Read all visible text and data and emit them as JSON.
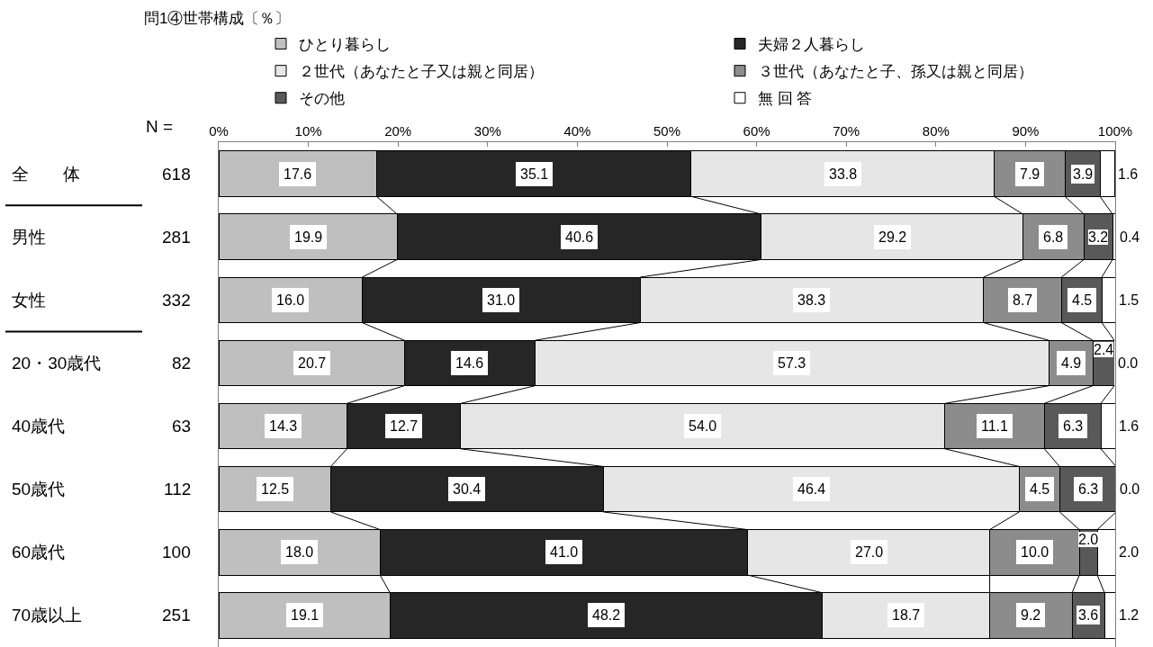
{
  "chart_data": {
    "type": "bar",
    "orientation": "horizontal",
    "stacked": true,
    "title": "問1④世帯構成〔％〕",
    "categories": [
      "全　　体",
      "男性",
      "女性",
      "20・30歳代",
      "40歳代",
      "50歳代",
      "60歳代",
      "70歳以上"
    ],
    "y2_categories": [
      "618",
      "281",
      "332",
      "82",
      "63",
      "112",
      "100",
      "251"
    ],
    "annotations": [
      "N ="
    ],
    "xlim": [
      0,
      100
    ],
    "xticks": [
      {
        "value": 0,
        "label": "0%"
      },
      {
        "value": 10,
        "label": "10%"
      },
      {
        "value": 20,
        "label": "20%"
      },
      {
        "value": 30,
        "label": "30%"
      },
      {
        "value": 40,
        "label": "40%"
      },
      {
        "value": 50,
        "label": "50%"
      },
      {
        "value": 60,
        "label": "60%"
      },
      {
        "value": 70,
        "label": "70%"
      },
      {
        "value": 80,
        "label": "80%"
      },
      {
        "value": 90,
        "label": "90%"
      },
      {
        "value": 100,
        "label": "100%"
      }
    ],
    "legend": "top",
    "series": [
      {
        "name": "ひとり暮らし",
        "color": "#bfbfbf",
        "values": [
          17.6,
          19.9,
          16.0,
          20.7,
          14.3,
          12.5,
          18.0,
          19.1
        ],
        "value_labels": [
          "17.6",
          "19.9",
          "16.0",
          "20.7",
          "14.3",
          "12.5",
          "18.0",
          "19.1"
        ]
      },
      {
        "name": "夫婦２人暮らし",
        "color": "#262626",
        "values": [
          35.1,
          40.6,
          31.0,
          14.6,
          12.7,
          30.4,
          41.0,
          48.2
        ],
        "value_labels": [
          "35.1",
          "40.6",
          "31.0",
          "14.6",
          "12.7",
          "30.4",
          "41.0",
          "48.2"
        ]
      },
      {
        "name": "２世代（あなたと子又は親と同居）",
        "color": "#e6e6e6",
        "values": [
          33.8,
          29.2,
          38.3,
          57.3,
          54.0,
          46.4,
          27.0,
          18.7
        ],
        "value_labels": [
          "33.8",
          "29.2",
          "38.3",
          "57.3",
          "54.0",
          "46.4",
          "27.0",
          "18.7"
        ]
      },
      {
        "name": "３世代（あなたと子、孫又は親と同居）",
        "color": "#8c8c8c",
        "values": [
          7.9,
          6.8,
          8.7,
          4.9,
          11.1,
          4.5,
          10.0,
          9.2
        ],
        "value_labels": [
          "7.9",
          "6.8",
          "8.7",
          "4.9",
          "11.1",
          "4.5",
          "10.0",
          "9.2"
        ]
      },
      {
        "name": "その他",
        "color": "#595959",
        "values": [
          3.9,
          3.2,
          4.5,
          2.4,
          6.3,
          6.3,
          2.0,
          3.6
        ],
        "value_labels": [
          "3.9",
          "3.2",
          "4.5",
          "2.4",
          "6.3",
          "6.3",
          "2.0",
          "3.6"
        ]
      },
      {
        "name": "無 回 答",
        "color": "#ffffff",
        "values": [
          1.6,
          0.4,
          1.5,
          0.0,
          1.6,
          0.0,
          2.0,
          1.2
        ],
        "value_labels": [
          "1.6",
          "0.4",
          "1.5",
          "0.0",
          "1.6",
          "0.0",
          "2.0",
          "1.2"
        ]
      }
    ]
  }
}
